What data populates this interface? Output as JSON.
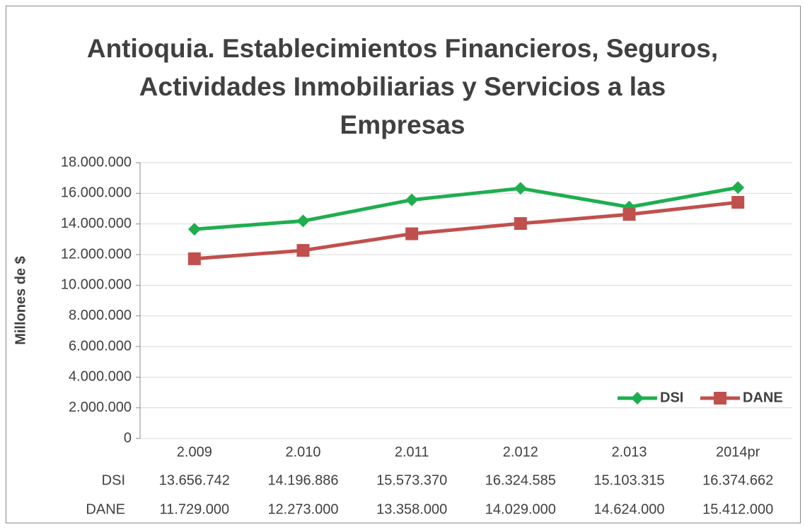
{
  "chart_data": {
    "type": "line",
    "title": "Antioquia. Establecimientos Financieros, Seguros, Actividades Inmobiliarias y Servicios a las Empresas",
    "y_label": "Millones de $",
    "categories": [
      "2.009",
      "2.010",
      "2.011",
      "2.012",
      "2.013",
      "2014pr"
    ],
    "series": [
      {
        "name": "DSI",
        "color": "#1fae4f",
        "marker": "diamond",
        "values": [
          13656742,
          14196886,
          15573370,
          16324585,
          15103315,
          16374662
        ],
        "value_labels": [
          "13.656.742",
          "14.196.886",
          "15.573.370",
          "16.324.585",
          "15.103.315",
          "16.374.662"
        ]
      },
      {
        "name": "DANE",
        "color": "#c0504d",
        "marker": "square",
        "values": [
          11729000,
          12273000,
          13358000,
          14029000,
          14624000,
          15412000
        ],
        "value_labels": [
          "11.729.000",
          "12.273.000",
          "13.358.000",
          "14.029.000",
          "14.624.000",
          "15.412.000"
        ]
      }
    ],
    "ylim": [
      0,
      18000000
    ],
    "yticks": [
      0,
      {
        "value": 2000000,
        "label": "2.000.000"
      },
      {
        "value": 4000000,
        "label": "4.000.000"
      },
      {
        "value": 6000000,
        "label": "6.000.000"
      },
      {
        "value": 8000000,
        "label": "8.000.000"
      },
      {
        "value": 10000000,
        "label": "10.000.000"
      },
      {
        "value": 12000000,
        "label": "12.000.000"
      },
      {
        "value": 14000000,
        "label": "14.000.000"
      },
      {
        "value": 16000000,
        "label": "16.000.000"
      },
      {
        "value": 18000000,
        "label": "18.000.000"
      }
    ],
    "grid": true,
    "legend": "lower right",
    "data_table": true
  }
}
